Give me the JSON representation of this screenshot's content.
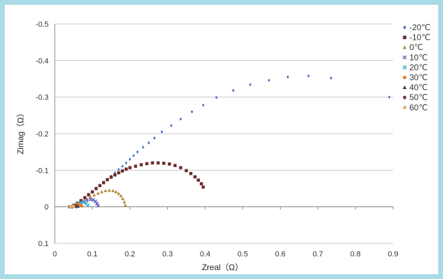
{
  "chart_data": {
    "type": "scatter",
    "xlabel": "Zreal（Ω）",
    "ylabel": "Zimag（Ω）",
    "xlim": [
      0,
      0.9
    ],
    "ylim": [
      0.1,
      -0.5
    ],
    "y_reversed": true,
    "x_ticks": [
      "0",
      "0.1",
      "0.2",
      "0.3",
      "0.4",
      "0.5",
      "0.6",
      "0.7",
      "0.8",
      "0.9"
    ],
    "y_ticks": [
      "-0.5",
      "-0.4",
      "-0.3",
      "-0.2",
      "-0.1",
      "0",
      "0.1"
    ],
    "grid": "horizontal",
    "legend_position": "right",
    "series": [
      {
        "name": "-20℃",
        "color": "#4a72c4",
        "marker": "diamond",
        "x": [
          0.04,
          0.05,
          0.06,
          0.07,
          0.08,
          0.09,
          0.1,
          0.11,
          0.12,
          0.13,
          0.14,
          0.15,
          0.16,
          0.17,
          0.18,
          0.19,
          0.2,
          0.21,
          0.22,
          0.235,
          0.25,
          0.265,
          0.285,
          0.31,
          0.335,
          0.365,
          0.395,
          0.43,
          0.475,
          0.52,
          0.57,
          0.62,
          0.675,
          0.735,
          0.89
        ],
        "y": [
          0.0,
          -0.003,
          -0.008,
          -0.015,
          -0.023,
          -0.031,
          -0.04,
          -0.049,
          -0.058,
          -0.067,
          -0.076,
          -0.084,
          -0.093,
          -0.102,
          -0.111,
          -0.12,
          -0.13,
          -0.14,
          -0.15,
          -0.163,
          -0.175,
          -0.188,
          -0.205,
          -0.222,
          -0.24,
          -0.26,
          -0.278,
          -0.299,
          -0.318,
          -0.334,
          -0.346,
          -0.355,
          -0.358,
          -0.352,
          -0.3
        ]
      },
      {
        "name": "-10℃",
        "color": "#6b2a2a",
        "marker": "square",
        "x": [
          0.04,
          0.05,
          0.06,
          0.07,
          0.08,
          0.09,
          0.1,
          0.11,
          0.12,
          0.13,
          0.14,
          0.15,
          0.16,
          0.17,
          0.18,
          0.19,
          0.2,
          0.215,
          0.23,
          0.245,
          0.26,
          0.275,
          0.29,
          0.305,
          0.32,
          0.335,
          0.35,
          0.362,
          0.373,
          0.382,
          0.39,
          0.395
        ],
        "y": [
          0.0,
          -0.004,
          -0.01,
          -0.017,
          -0.025,
          -0.033,
          -0.041,
          -0.05,
          -0.058,
          -0.066,
          -0.074,
          -0.081,
          -0.087,
          -0.093,
          -0.098,
          -0.103,
          -0.107,
          -0.111,
          -0.115,
          -0.118,
          -0.12,
          -0.12,
          -0.119,
          -0.117,
          -0.113,
          -0.107,
          -0.099,
          -0.091,
          -0.082,
          -0.073,
          -0.063,
          -0.054
        ]
      },
      {
        "name": "0℃",
        "color": "#b58a3a",
        "marker": "triangle",
        "x": [
          0.045,
          0.055,
          0.065,
          0.075,
          0.085,
          0.095,
          0.105,
          0.115,
          0.125,
          0.135,
          0.145,
          0.155,
          0.163,
          0.17,
          0.176,
          0.181,
          0.185,
          0.188
        ],
        "y": [
          0.0,
          -0.004,
          -0.009,
          -0.015,
          -0.021,
          -0.027,
          -0.032,
          -0.037,
          -0.041,
          -0.044,
          -0.045,
          -0.044,
          -0.041,
          -0.036,
          -0.03,
          -0.022,
          -0.013,
          -0.004
        ]
      },
      {
        "name": "10℃",
        "color": "#6c6cc0",
        "marker": "x",
        "x": [
          0.045,
          0.055,
          0.065,
          0.075,
          0.085,
          0.095,
          0.102,
          0.108,
          0.112,
          0.115
        ],
        "y": [
          0.0,
          -0.004,
          -0.009,
          -0.014,
          -0.018,
          -0.02,
          -0.019,
          -0.015,
          -0.009,
          -0.003
        ]
      },
      {
        "name": "20℃",
        "color": "#39b2d4",
        "marker": "x",
        "x": [
          0.045,
          0.052,
          0.06,
          0.068,
          0.076,
          0.083,
          0.088
        ],
        "y": [
          0.0,
          -0.004,
          -0.008,
          -0.011,
          -0.012,
          -0.009,
          -0.004
        ]
      },
      {
        "name": "30℃",
        "color": "#e8781a",
        "marker": "circle",
        "x": [
          0.045,
          0.05,
          0.056,
          0.062,
          0.068,
          0.072
        ],
        "y": [
          0.0,
          -0.003,
          -0.006,
          -0.007,
          -0.005,
          -0.002
        ]
      },
      {
        "name": "40℃",
        "color": "#333366",
        "marker": "triangle",
        "x": [
          0.043,
          0.048,
          0.053,
          0.058,
          0.062
        ],
        "y": [
          0.0,
          -0.002,
          -0.004,
          -0.003,
          -0.001
        ]
      },
      {
        "name": "50℃",
        "color": "#6b3a3a",
        "marker": "circle",
        "x": [
          0.042,
          0.046,
          0.05,
          0.054,
          0.057
        ],
        "y": [
          0.0,
          -0.002,
          -0.003,
          -0.002,
          0.0
        ]
      },
      {
        "name": "60℃",
        "color": "#e0b070",
        "marker": "circle",
        "x": [
          0.041,
          0.044,
          0.047,
          0.05
        ],
        "y": [
          0.0,
          -0.001,
          -0.002,
          -0.001
        ]
      }
    ]
  }
}
